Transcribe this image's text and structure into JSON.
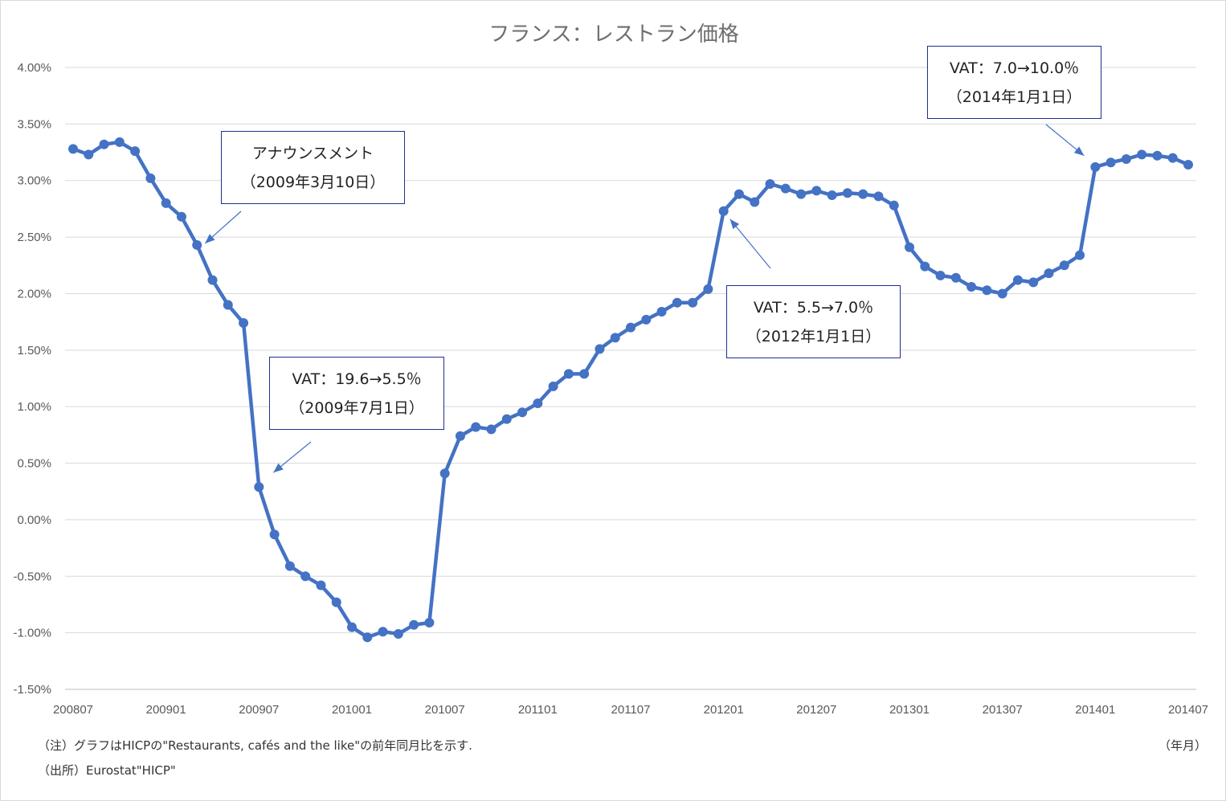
{
  "chart_data": {
    "type": "line",
    "title": "フランス：レストラン価格",
    "xlabel": "（年月）",
    "ylabel": "",
    "ylim": [
      -1.5,
      4.0
    ],
    "ytick_labels": [
      "4.00%",
      "3.50%",
      "3.00%",
      "2.50%",
      "2.00%",
      "1.50%",
      "1.00%",
      "0.50%",
      "0.00%",
      "-0.50%",
      "-1.00%",
      "-1.50%"
    ],
    "ytick_values": [
      4.0,
      3.5,
      3.0,
      2.5,
      2.0,
      1.5,
      1.0,
      0.5,
      0.0,
      -0.5,
      -1.0,
      -1.5
    ],
    "xtick_labels": [
      "200807",
      "200901",
      "200907",
      "201001",
      "201007",
      "201101",
      "201107",
      "201201",
      "201207",
      "201301",
      "201307",
      "201401",
      "201407"
    ],
    "grid": true,
    "series": [
      {
        "x": [
          "200807",
          "200808",
          "200809",
          "200810",
          "200811",
          "200812",
          "200901",
          "200902",
          "200903",
          "200904",
          "200905",
          "200906",
          "200907",
          "200908",
          "200909",
          "200910",
          "200911",
          "200912",
          "201001",
          "201002",
          "201003",
          "201004",
          "201005",
          "201006",
          "201007",
          "201008",
          "201009",
          "201010",
          "201011",
          "201012",
          "201101",
          "201102",
          "201103",
          "201104",
          "201105",
          "201106",
          "201107",
          "201108",
          "201109",
          "201110",
          "201111",
          "201112",
          "201201",
          "201202",
          "201203",
          "201204",
          "201205",
          "201206",
          "201207",
          "201208",
          "201209",
          "201210",
          "201211",
          "201212",
          "201301",
          "201302",
          "201303",
          "201304",
          "201305",
          "201306",
          "201307",
          "201308",
          "201309",
          "201310",
          "201311",
          "201312",
          "201401",
          "201402",
          "201403",
          "201404",
          "201405",
          "201406",
          "201407"
        ],
        "values": [
          3.28,
          3.23,
          3.32,
          3.34,
          3.26,
          3.02,
          2.8,
          2.68,
          2.43,
          2.12,
          1.9,
          1.74,
          0.29,
          -0.13,
          -0.41,
          -0.5,
          -0.58,
          -0.73,
          -0.95,
          -1.04,
          -0.99,
          -1.01,
          -0.93,
          -0.91,
          0.41,
          0.74,
          0.82,
          0.8,
          0.89,
          0.95,
          1.03,
          1.18,
          1.29,
          1.29,
          1.51,
          1.61,
          1.7,
          1.77,
          1.84,
          1.92,
          1.92,
          2.04,
          2.73,
          2.88,
          2.81,
          2.97,
          2.93,
          2.88,
          2.91,
          2.87,
          2.89,
          2.88,
          2.86,
          2.78,
          2.41,
          2.24,
          2.16,
          2.14,
          2.06,
          2.03,
          2.0,
          2.12,
          2.1,
          2.18,
          2.25,
          2.34,
          3.12,
          3.16,
          3.19,
          3.23,
          3.22,
          3.2,
          3.14
        ]
      }
    ],
    "annotations": [
      {
        "line1": "アナウンスメント",
        "line2": "（2009年3月10日）",
        "target_x": "200903"
      },
      {
        "line1": "VAT：19.6→5.5％",
        "line2": "（2009年7月1日）",
        "target_x": "200907"
      },
      {
        "line1": "VAT：5.5→7.0％",
        "line2": "（2012年1月1日）",
        "target_x": "201201"
      },
      {
        "line1": "VAT：7.0→10.0％",
        "line2": "（2014年1月1日）",
        "target_x": "201401"
      }
    ]
  },
  "notes": {
    "note1": "（注）グラフはHICPの\"Restaurants, cafés and the like\"の前年同月比を示す.",
    "note2": "（出所）Eurostat\"HICP\""
  },
  "colors": {
    "series": "#4472c4",
    "grid": "#d9d9d9",
    "annotation_border": "#1f2f8f"
  }
}
